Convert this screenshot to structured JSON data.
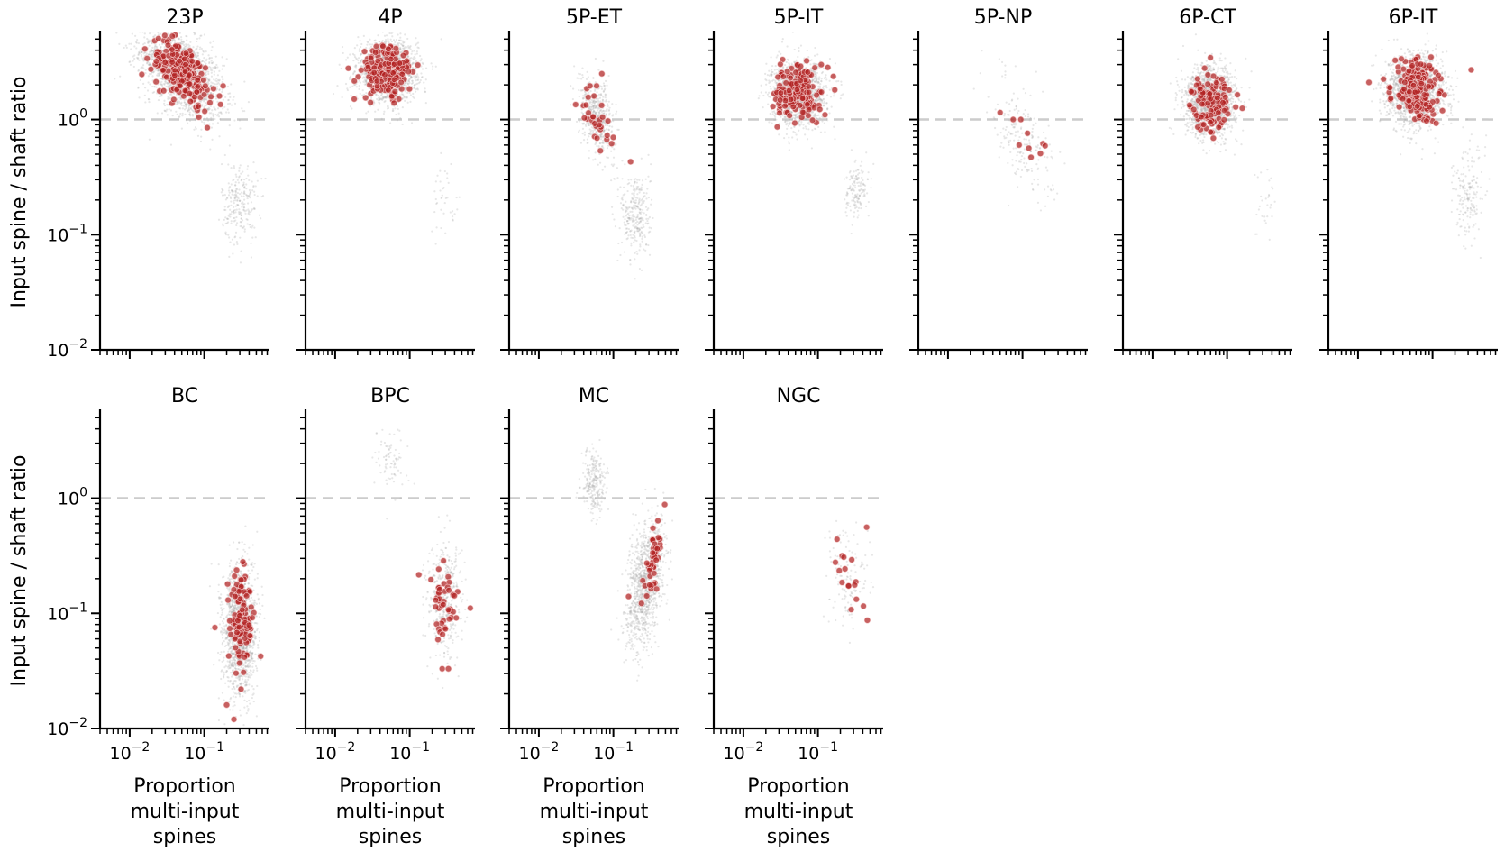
{
  "chart_data": {
    "type": "scatter",
    "ylabel": "Input spine / shaft ratio",
    "xlabel": "Proportion multi-input spines",
    "xlabel_lines": [
      "Proportion",
      "multi-input",
      "spines"
    ],
    "xscale": "log",
    "yscale": "log",
    "xlim": [
      0.004,
      0.75
    ],
    "ylim": [
      0.01,
      5.5
    ],
    "ytick_labels": [
      "10^-2",
      "10^-1",
      "10^0"
    ],
    "xtick_labels": [
      "10^-2",
      "10^-1"
    ],
    "reference_line": {
      "y": 1.0,
      "style": "dashed",
      "color": "#cccccc"
    },
    "colors": {
      "background_points": "#a9a9a9",
      "highlight_points": "#b22222",
      "highlight_edge": "#f2c4c4"
    },
    "series": [
      {
        "name": "background"
      },
      {
        "name": "highlighted"
      }
    ],
    "panels": [
      {
        "title": "23P",
        "row": 0,
        "col": 0,
        "clusters": [
          {
            "series": "background",
            "center": [
              0.05,
              2.5
            ],
            "spread": [
              0.28,
              0.2
            ],
            "n": 1800,
            "corr": -0.5
          },
          {
            "series": "background",
            "center": [
              0.3,
              0.19
            ],
            "spread": [
              0.12,
              0.18
            ],
            "n": 250,
            "corr": 0
          },
          {
            "series": "highlighted",
            "center": [
              0.05,
              2.6
            ],
            "spread": [
              0.2,
              0.14
            ],
            "n": 220,
            "corr": -0.5
          }
        ],
        "extra_points": [
          {
            "series": "highlighted",
            "x": 0.11,
            "y": 0.85
          },
          {
            "series": "highlighted",
            "x": 0.16,
            "y": 1.6
          },
          {
            "series": "highlighted",
            "x": 0.016,
            "y": 4.1
          }
        ]
      },
      {
        "title": "4P",
        "row": 0,
        "col": 1,
        "clusters": [
          {
            "series": "background",
            "center": [
              0.05,
              2.6
            ],
            "spread": [
              0.2,
              0.13
            ],
            "n": 1700,
            "corr": 0
          },
          {
            "series": "background",
            "center": [
              0.3,
              0.2
            ],
            "spread": [
              0.1,
              0.15
            ],
            "n": 40,
            "corr": 0
          },
          {
            "series": "highlighted",
            "center": [
              0.05,
              2.6
            ],
            "spread": [
              0.17,
              0.12
            ],
            "n": 180,
            "corr": 0
          }
        ],
        "extra_points": []
      },
      {
        "title": "5P-ET",
        "row": 0,
        "col": 2,
        "clusters": [
          {
            "series": "background",
            "center": [
              0.06,
              1.1
            ],
            "spread": [
              0.12,
              0.17
            ],
            "n": 500,
            "corr": -0.4
          },
          {
            "series": "background",
            "center": [
              0.2,
              0.15
            ],
            "spread": [
              0.1,
              0.2
            ],
            "n": 300,
            "corr": 0
          },
          {
            "series": "highlighted",
            "center": [
              0.06,
              1.0
            ],
            "spread": [
              0.1,
              0.14
            ],
            "n": 30,
            "corr": -0.4
          }
        ],
        "extra_points": [
          {
            "series": "highlighted",
            "x": 0.07,
            "y": 2.5
          },
          {
            "series": "highlighted",
            "x": 0.17,
            "y": 0.43
          }
        ]
      },
      {
        "title": "5P-IT",
        "row": 0,
        "col": 3,
        "clusters": [
          {
            "series": "background",
            "center": [
              0.055,
              1.7
            ],
            "spread": [
              0.18,
              0.14
            ],
            "n": 1600,
            "corr": 0
          },
          {
            "series": "background",
            "center": [
              0.33,
              0.24
            ],
            "spread": [
              0.08,
              0.12
            ],
            "n": 150,
            "corr": 0
          },
          {
            "series": "highlighted",
            "center": [
              0.055,
              1.75
            ],
            "spread": [
              0.15,
              0.12
            ],
            "n": 160,
            "corr": 0
          }
        ],
        "extra_points": []
      },
      {
        "title": "5P-NP",
        "row": 0,
        "col": 4,
        "clusters": [
          {
            "series": "background",
            "center": [
              0.1,
              0.7
            ],
            "spread": [
              0.2,
              0.25
            ],
            "n": 220,
            "corr": -0.5
          },
          {
            "series": "highlighted",
            "center": [
              0.14,
              0.65
            ],
            "spread": [
              0.1,
              0.08
            ],
            "n": 5,
            "corr": 0
          }
        ],
        "extra_points": [
          {
            "series": "highlighted",
            "x": 0.05,
            "y": 1.15
          },
          {
            "series": "highlighted",
            "x": 0.075,
            "y": 1.0
          },
          {
            "series": "highlighted",
            "x": 0.095,
            "y": 1.0
          },
          {
            "series": "highlighted",
            "x": 0.09,
            "y": 0.6
          },
          {
            "series": "highlighted",
            "x": 0.13,
            "y": 0.47
          }
        ]
      },
      {
        "title": "6P-CT",
        "row": 0,
        "col": 5,
        "clusters": [
          {
            "series": "background",
            "center": [
              0.06,
              1.45
            ],
            "spread": [
              0.17,
              0.15
            ],
            "n": 1500,
            "corr": 0
          },
          {
            "series": "background",
            "center": [
              0.33,
              0.2
            ],
            "spread": [
              0.1,
              0.15
            ],
            "n": 30,
            "corr": 0
          },
          {
            "series": "highlighted",
            "center": [
              0.06,
              1.45
            ],
            "spread": [
              0.13,
              0.12
            ],
            "n": 120,
            "corr": 0
          }
        ],
        "extra_points": [
          {
            "series": "highlighted",
            "x": 0.16,
            "y": 1.25
          }
        ]
      },
      {
        "title": "6P-IT",
        "row": 0,
        "col": 6,
        "clusters": [
          {
            "series": "background",
            "center": [
              0.06,
              1.8
            ],
            "spread": [
              0.19,
              0.15
            ],
            "n": 1600,
            "corr": 0
          },
          {
            "series": "background",
            "center": [
              0.3,
              0.22
            ],
            "spread": [
              0.1,
              0.22
            ],
            "n": 180,
            "corr": 0
          },
          {
            "series": "highlighted",
            "center": [
              0.06,
              1.8
            ],
            "spread": [
              0.15,
              0.13
            ],
            "n": 180,
            "corr": 0
          }
        ],
        "extra_points": [
          {
            "series": "highlighted",
            "x": 0.33,
            "y": 2.7
          },
          {
            "series": "highlighted",
            "x": 0.014,
            "y": 2.1
          }
        ]
      },
      {
        "title": "BC",
        "row": 1,
        "col": 0,
        "clusters": [
          {
            "series": "background",
            "center": [
              0.3,
              0.07
            ],
            "spread": [
              0.11,
              0.28
            ],
            "n": 1500,
            "corr": 0
          },
          {
            "series": "highlighted",
            "center": [
              0.3,
              0.09
            ],
            "spread": [
              0.09,
              0.22
            ],
            "n": 110,
            "corr": 0
          }
        ],
        "extra_points": [
          {
            "series": "highlighted",
            "x": 0.25,
            "y": 0.012
          },
          {
            "series": "highlighted",
            "x": 0.2,
            "y": 0.016
          },
          {
            "series": "highlighted",
            "x": 0.33,
            "y": 0.28
          }
        ]
      },
      {
        "title": "BPC",
        "row": 1,
        "col": 1,
        "clusters": [
          {
            "series": "background",
            "center": [
              0.055,
              2.0
            ],
            "spread": [
              0.12,
              0.14
            ],
            "n": 80,
            "corr": 0
          },
          {
            "series": "background",
            "center": [
              0.3,
              0.13
            ],
            "spread": [
              0.12,
              0.25
            ],
            "n": 400,
            "corr": 0
          },
          {
            "series": "highlighted",
            "center": [
              0.3,
              0.13
            ],
            "spread": [
              0.1,
              0.22
            ],
            "n": 45,
            "corr": 0
          }
        ],
        "extra_points": [
          {
            "series": "highlighted",
            "x": 0.33,
            "y": 0.033
          }
        ]
      },
      {
        "title": "MC",
        "row": 1,
        "col": 2,
        "clusters": [
          {
            "series": "background",
            "center": [
              0.055,
              1.35
            ],
            "spread": [
              0.08,
              0.15
            ],
            "n": 250,
            "corr": 0
          },
          {
            "series": "background",
            "center": [
              0.27,
              0.18
            ],
            "spread": [
              0.13,
              0.28
            ],
            "n": 1100,
            "corr": 0.5
          },
          {
            "series": "highlighted",
            "center": [
              0.34,
              0.3
            ],
            "spread": [
              0.06,
              0.16
            ],
            "n": 45,
            "corr": 0.6
          }
        ],
        "extra_points": [
          {
            "series": "highlighted",
            "x": 0.16,
            "y": 0.14
          }
        ]
      },
      {
        "title": "NGC",
        "row": 1,
        "col": 3,
        "clusters": [
          {
            "series": "background",
            "center": [
              0.25,
              0.2
            ],
            "spread": [
              0.12,
              0.22
            ],
            "n": 120,
            "corr": 0
          },
          {
            "series": "highlighted",
            "center": [
              0.25,
              0.2
            ],
            "spread": [
              0.1,
              0.16
            ],
            "n": 14,
            "corr": 0
          }
        ],
        "extra_points": [
          {
            "series": "highlighted",
            "x": 0.45,
            "y": 0.56
          },
          {
            "series": "highlighted",
            "x": 0.46,
            "y": 0.087
          },
          {
            "series": "highlighted",
            "x": 0.18,
            "y": 0.44
          }
        ]
      }
    ]
  }
}
